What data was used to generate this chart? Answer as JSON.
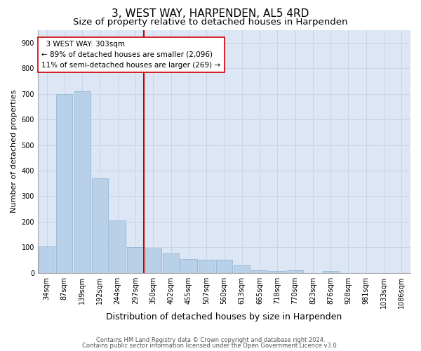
{
  "title": "3, WEST WAY, HARPENDEN, AL5 4RD",
  "subtitle": "Size of property relative to detached houses in Harpenden",
  "xlabel": "Distribution of detached houses by size in Harpenden",
  "ylabel": "Number of detached properties",
  "categories": [
    "34sqm",
    "87sqm",
    "139sqm",
    "192sqm",
    "244sqm",
    "297sqm",
    "350sqm",
    "402sqm",
    "455sqm",
    "507sqm",
    "560sqm",
    "613sqm",
    "665sqm",
    "718sqm",
    "770sqm",
    "823sqm",
    "876sqm",
    "928sqm",
    "981sqm",
    "1033sqm",
    "1086sqm"
  ],
  "values": [
    105,
    700,
    710,
    370,
    205,
    100,
    95,
    75,
    55,
    53,
    53,
    30,
    10,
    8,
    10,
    0,
    8,
    0,
    0,
    0,
    0
  ],
  "bar_color": "#b8d0e8",
  "bar_edge_color": "#8ab0d0",
  "vline_color": "#cc0000",
  "annotation_text": "  3 WEST WAY: 303sqm\n← 89% of detached houses are smaller (2,096)\n11% of semi-detached houses are larger (269) →",
  "annotation_box_facecolor": "#ffffff",
  "annotation_box_edgecolor": "#cc0000",
  "grid_color": "#c8d4e8",
  "background_color": "#dce6f4",
  "footer_line1": "Contains HM Land Registry data © Crown copyright and database right 2024.",
  "footer_line2": "Contains public sector information licensed under the Open Government Licence v3.0.",
  "ylim": [
    0,
    950
  ],
  "yticks": [
    0,
    100,
    200,
    300,
    400,
    500,
    600,
    700,
    800,
    900
  ],
  "title_fontsize": 11,
  "subtitle_fontsize": 9.5,
  "xlabel_fontsize": 9,
  "ylabel_fontsize": 8,
  "tick_fontsize": 7,
  "footer_fontsize": 6,
  "ann_fontsize": 7.5
}
